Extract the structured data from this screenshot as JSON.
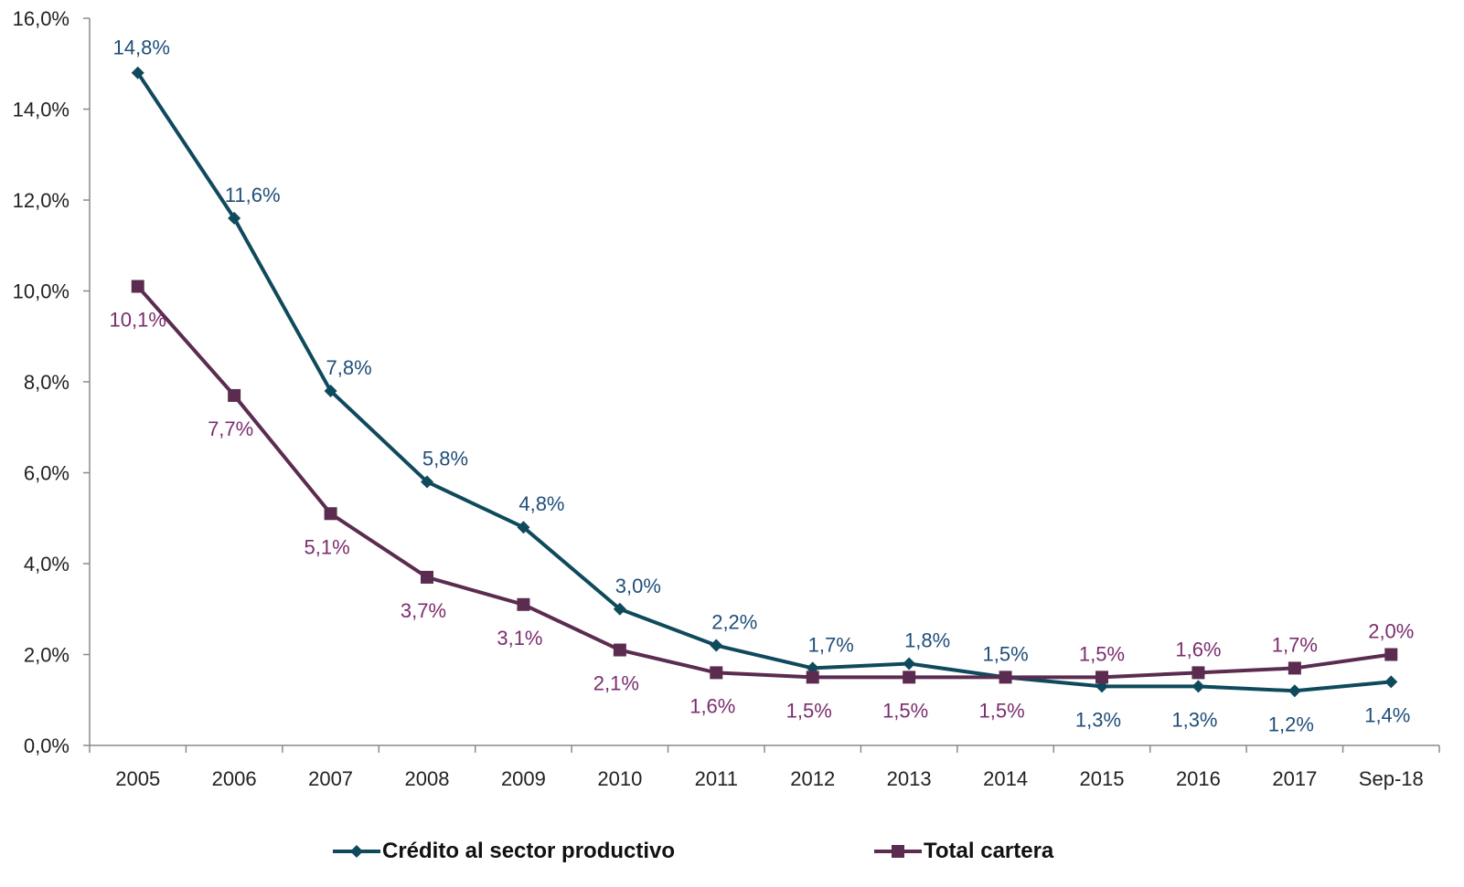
{
  "chart_data": {
    "type": "line",
    "categories": [
      "2005",
      "2006",
      "2007",
      "2008",
      "2009",
      "2010",
      "2011",
      "2012",
      "2013",
      "2014",
      "2015",
      "2016",
      "2017",
      "Sep-18"
    ],
    "series": [
      {
        "name": "Crédito al sector productivo",
        "color": "#0f4a5c",
        "label_color": "#1f4e79",
        "marker": "diamond",
        "values": [
          14.8,
          11.6,
          7.8,
          5.8,
          4.8,
          3.0,
          2.2,
          1.7,
          1.8,
          1.5,
          1.3,
          1.3,
          1.2,
          1.4
        ],
        "labels": [
          "14,8%",
          "11,6%",
          "7,8%",
          "5,8%",
          "4,8%",
          "3,0%",
          "2,2%",
          "1,7%",
          "1,8%",
          "1,5%",
          "1,3%",
          "1,3%",
          "1,2%",
          "1,4%"
        ]
      },
      {
        "name": "Total cartera",
        "color": "#5b2c4f",
        "label_color": "#7b2d6e",
        "marker": "square",
        "values": [
          10.1,
          7.7,
          5.1,
          3.7,
          3.1,
          2.1,
          1.6,
          1.5,
          1.5,
          1.5,
          1.5,
          1.6,
          1.7,
          2.0
        ],
        "labels": [
          "10,1%",
          "7,7%",
          "5,1%",
          "3,7%",
          "3,1%",
          "2,1%",
          "1,6%",
          "1,5%",
          "1,5%",
          "1,5%",
          "1,5%",
          "1,6%",
          "1,7%",
          "2,0%"
        ]
      }
    ],
    "y_ticks": [
      "0,0%",
      "2,0%",
      "4,0%",
      "6,0%",
      "8,0%",
      "10,0%",
      "12,0%",
      "14,0%",
      "16,0%"
    ],
    "ylim": [
      0,
      16
    ],
    "title": "",
    "xlabel": "",
    "ylabel": "",
    "grid": false,
    "legend_position": "bottom"
  }
}
